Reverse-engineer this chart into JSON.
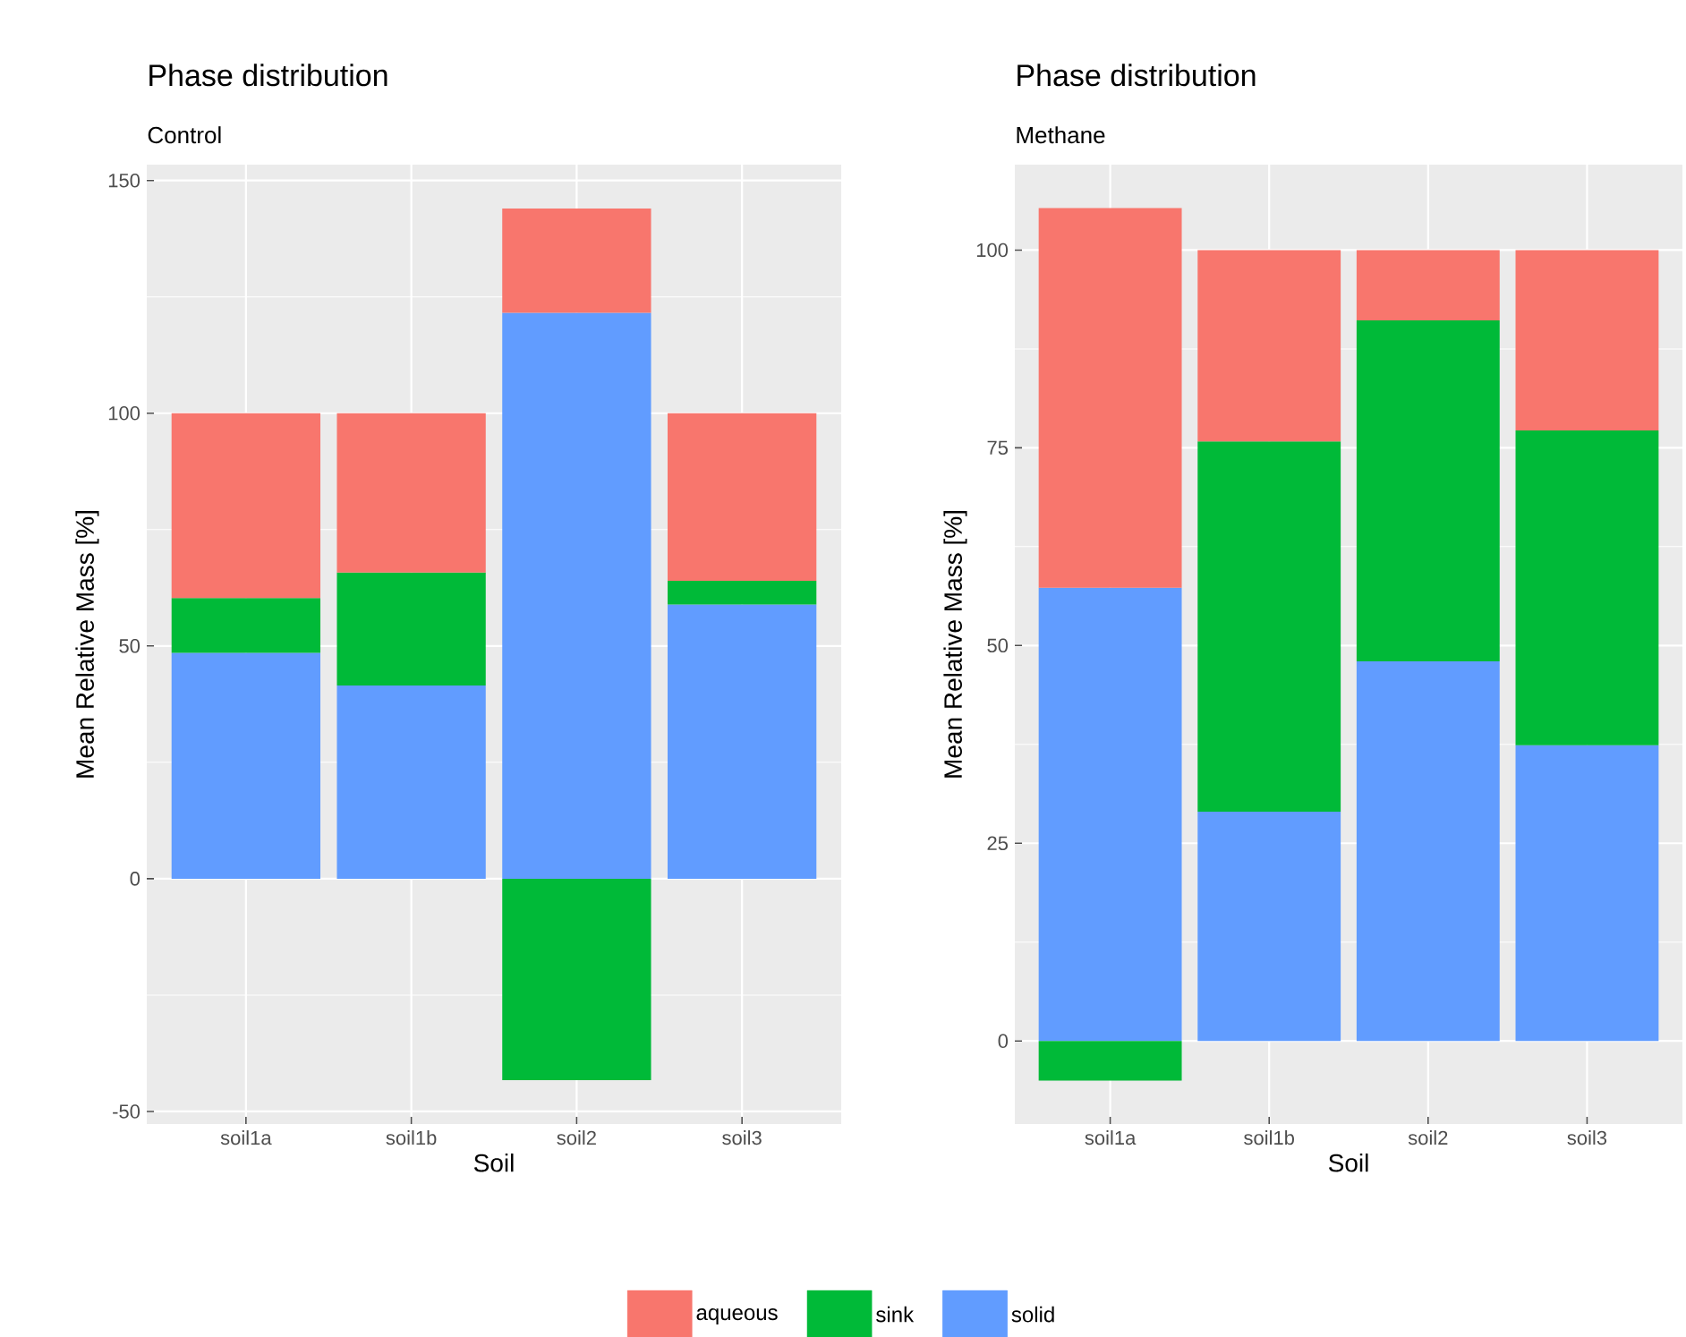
{
  "chart_data": [
    {
      "type": "bar",
      "title": "Phase distribution",
      "subtitle": "Control",
      "xlabel": "Soil",
      "ylabel": "Mean Relative Mass [%]",
      "categories": [
        "soil1a",
        "soil1b",
        "soil2",
        "soil3"
      ],
      "series": [
        {
          "name": "solid",
          "color": "#619CFF",
          "values": [
            48.5,
            41.5,
            121.6,
            58.9
          ]
        },
        {
          "name": "sink",
          "color": "#00BA38",
          "values": [
            11.8,
            24.3,
            -43.3,
            5.1
          ]
        },
        {
          "name": "aqueous",
          "color": "#F8766D",
          "values": [
            39.7,
            34.2,
            22.4,
            36.0
          ]
        }
      ],
      "stacked": true,
      "ylim": [
        -52.7,
        153.4
      ],
      "yticks": [
        -50,
        0,
        50,
        100,
        150
      ],
      "grid": true,
      "legend": "bottom"
    },
    {
      "type": "bar",
      "title": "Phase distribution",
      "subtitle": "Methane",
      "xlabel": "Soil",
      "ylabel": "Mean Relative Mass [%]",
      "categories": [
        "soil1a",
        "soil1b",
        "soil2",
        "soil3"
      ],
      "series": [
        {
          "color": "#619CFF",
          "values": [
            57.3,
            29.0,
            48.0,
            37.4
          ]
        },
        {
          "color": "#00BA38",
          "values": [
            -5.0,
            46.8,
            43.1,
            39.8
          ]
        },
        {
          "color": "#F8766D",
          "values": [
            48.0,
            24.2,
            8.9,
            22.8
          ]
        }
      ],
      "stacked": true,
      "ylim": [
        -10.5,
        110.8
      ],
      "yticks": [
        0,
        25,
        50,
        75,
        100
      ],
      "grid": true
    }
  ]
}
